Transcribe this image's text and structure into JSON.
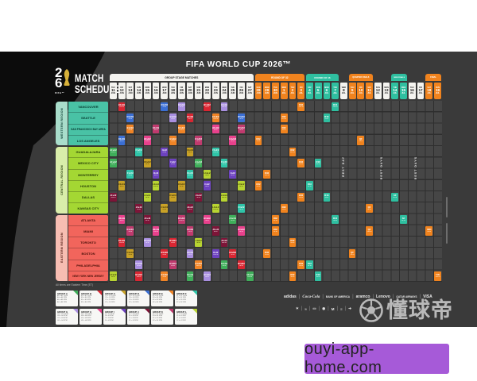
{
  "colors": {
    "poster_bg": "#3a3a3a",
    "swoosh": "#0c0c0c",
    "grid_cell": "#464646",
    "grid_line": "#2e2e2e",
    "stage_orange": "#f0831e",
    "stage_teal": "#2fbfa0",
    "banner_light": "#f4f3ef",
    "west_cell": "#49c2a5",
    "west_band": "#a9ddcb",
    "west_text": "#083a30",
    "central_cell": "#a4d733",
    "central_band": "#d9edaa",
    "central_text": "#1e3506",
    "east_cell": "#f2655c",
    "east_band": "#f7bdb2",
    "east_text": "#471008",
    "watermark_purple": "#a65ad8",
    "groups": {
      "A": "#3fae5a",
      "B": "#d92632",
      "C": "#c9a227",
      "D": "#3b6fd4",
      "E": "#f08426",
      "F": "#2fc4a8",
      "G": "#a98fe0",
      "H": "#e8418c",
      "I": "#6d42c0",
      "J": "#7d1538",
      "K": "#c03a6e",
      "L": "#b8d432"
    }
  },
  "poster": {
    "title": "FIFA WORLD CUP 2026™",
    "logo": {
      "digit_top": "2",
      "digit_bottom": "6",
      "fifa": "FIFA™",
      "line1": "MATCH",
      "line2": "SCHEDULE",
      "trophy_icon": "world-cup-trophy-icon"
    },
    "note": "All times are Eastern Time (ET)"
  },
  "header": {
    "banners": [
      {
        "label": "GROUP STAGE MATCHES",
        "from": 1,
        "to": 17,
        "type": "light",
        "font": 3.4
      },
      {
        "label": "ROUND OF 32",
        "from": 18,
        "to": 23,
        "type": "orange",
        "font": 3.2
      },
      {
        "label": "ROUND OF 16",
        "from": 24,
        "to": 27,
        "type": "teal",
        "font": 3.0
      },
      {
        "label": "QUARTER FINALS",
        "from": 29,
        "to": 31,
        "type": "orange",
        "font": 2.4
      },
      {
        "label": "SEMI FINALS",
        "from": 34,
        "to": 35,
        "type": "teal",
        "font": 2.2
      },
      {
        "label": "FINAL",
        "from": 38,
        "to": 39,
        "type": "orange",
        "font": 2.6
      }
    ],
    "stage_cols": {
      "group": [
        1,
        17
      ],
      "r32": [
        18,
        23
      ],
      "r16": [
        24,
        27
      ],
      "qf": [
        29,
        31
      ],
      "sf": [
        34,
        35
      ],
      "final": [
        38,
        39
      ],
      "rest": [
        28,
        32,
        33,
        36,
        37
      ]
    },
    "dates": [
      {
        "w": "THU",
        "d": "11",
        "m": "JUN"
      },
      {
        "w": "FRI",
        "d": "12",
        "m": "JUN"
      },
      {
        "w": "SAT",
        "d": "13",
        "m": "JUN"
      },
      {
        "w": "SUN",
        "d": "14",
        "m": "JUN"
      },
      {
        "w": "MON",
        "d": "15",
        "m": "JUN"
      },
      {
        "w": "TUE",
        "d": "16",
        "m": "JUN"
      },
      {
        "w": "WED",
        "d": "17",
        "m": "JUN"
      },
      {
        "w": "THU",
        "d": "18",
        "m": "JUN"
      },
      {
        "w": "FRI",
        "d": "19",
        "m": "JUN"
      },
      {
        "w": "SAT",
        "d": "20",
        "m": "JUN"
      },
      {
        "w": "SUN",
        "d": "21",
        "m": "JUN"
      },
      {
        "w": "MON",
        "d": "22",
        "m": "JUN"
      },
      {
        "w": "TUE",
        "d": "23",
        "m": "JUN"
      },
      {
        "w": "WED",
        "d": "24",
        "m": "JUN"
      },
      {
        "w": "THU",
        "d": "25",
        "m": "JUN"
      },
      {
        "w": "FRI",
        "d": "26",
        "m": "JUN"
      },
      {
        "w": "SAT",
        "d": "27",
        "m": "JUN"
      },
      {
        "w": "SUN",
        "d": "28",
        "m": "JUN"
      },
      {
        "w": "MON",
        "d": "29",
        "m": "JUN"
      },
      {
        "w": "TUE",
        "d": "30",
        "m": "JUN"
      },
      {
        "w": "WED",
        "d": "1",
        "m": "JUL"
      },
      {
        "w": "THU",
        "d": "2",
        "m": "JUL"
      },
      {
        "w": "FRI",
        "d": "3",
        "m": "JUL"
      },
      {
        "w": "SAT",
        "d": "4",
        "m": "JUL"
      },
      {
        "w": "SUN",
        "d": "5",
        "m": "JUL"
      },
      {
        "w": "MON",
        "d": "6",
        "m": "JUL"
      },
      {
        "w": "TUE",
        "d": "7",
        "m": "JUL"
      },
      {
        "w": "WED",
        "d": "8",
        "m": "JUL"
      },
      {
        "w": "THU",
        "d": "9",
        "m": "JUL"
      },
      {
        "w": "FRI",
        "d": "10",
        "m": "JUL"
      },
      {
        "w": "SAT",
        "d": "11",
        "m": "JUL"
      },
      {
        "w": "SUN",
        "d": "12",
        "m": "JUL"
      },
      {
        "w": "MON",
        "d": "13",
        "m": "JUL"
      },
      {
        "w": "TUE",
        "d": "14",
        "m": "JUL"
      },
      {
        "w": "WED",
        "d": "15",
        "m": "JUL"
      },
      {
        "w": "THU",
        "d": "16",
        "m": "JUL"
      },
      {
        "w": "FRI",
        "d": "17",
        "m": "JUL"
      },
      {
        "w": "SAT",
        "d": "18",
        "m": "JUL"
      },
      {
        "w": "SUN",
        "d": "19",
        "m": "JUL"
      }
    ]
  },
  "regions": [
    {
      "label": "WESTERN REGION",
      "rows": [
        1,
        4
      ],
      "cities": [
        "VANCOUVER",
        "SEATTLE",
        "SAN FRANCISCO BAY AREA",
        "LOS ANGELES"
      ]
    },
    {
      "label": "CENTRAL REGION",
      "rows": [
        5,
        10
      ],
      "cities": [
        "GUADALAJARA",
        "MEXICO CITY",
        "MONTERREY",
        "HOUSTON",
        "DALLAS",
        "KANSAS CITY"
      ]
    },
    {
      "label": "EASTERN REGION",
      "rows": [
        11,
        16
      ],
      "cities": [
        "ATLANTA",
        "MIAMI",
        "TORONTO",
        "BOSTON",
        "PHILADELPHIA",
        "NEW YORK NEW JERSEY"
      ]
    }
  ],
  "grid": {
    "rest_labels": [
      {
        "col": 28,
        "text": "REST DAY"
      },
      {
        "col": 32.5,
        "text": "REST DAYS"
      },
      {
        "col": 36.5,
        "text": "REST DAYS"
      }
    ],
    "times": [
      "12PM",
      "3PM",
      "6PM",
      "9PM"
    ],
    "cells": [
      {
        "r": 1,
        "c": 2,
        "g": "B"
      },
      {
        "r": 1,
        "c": 7,
        "g": "D"
      },
      {
        "r": 1,
        "c": 9,
        "g": "G"
      },
      {
        "r": 1,
        "c": 12,
        "g": "B"
      },
      {
        "r": 1,
        "c": 14,
        "g": "G"
      },
      {
        "r": 2,
        "c": 3,
        "g": "D"
      },
      {
        "r": 2,
        "c": 8,
        "g": "G"
      },
      {
        "r": 2,
        "c": 10,
        "g": "B"
      },
      {
        "r": 2,
        "c": 13,
        "g": "E"
      },
      {
        "r": 2,
        "c": 16,
        "g": "D"
      },
      {
        "r": 3,
        "c": 3,
        "g": "E"
      },
      {
        "r": 3,
        "c": 6,
        "g": "K"
      },
      {
        "r": 3,
        "c": 9,
        "g": "E"
      },
      {
        "r": 3,
        "c": 13,
        "g": "H"
      },
      {
        "r": 3,
        "c": 16,
        "g": "K"
      },
      {
        "r": 4,
        "c": 2,
        "g": "D"
      },
      {
        "r": 4,
        "c": 5,
        "g": "H"
      },
      {
        "r": 4,
        "c": 8,
        "g": "E"
      },
      {
        "r": 4,
        "c": 11,
        "g": "K"
      },
      {
        "r": 4,
        "c": 15,
        "g": "H"
      },
      {
        "r": 5,
        "c": 1,
        "g": "A"
      },
      {
        "r": 5,
        "c": 4,
        "g": "F"
      },
      {
        "r": 5,
        "c": 7,
        "g": "I"
      },
      {
        "r": 5,
        "c": 10,
        "g": "C"
      },
      {
        "r": 5,
        "c": 13,
        "g": "F"
      },
      {
        "r": 6,
        "c": 1,
        "g": "A"
      },
      {
        "r": 6,
        "c": 5,
        "g": "C"
      },
      {
        "r": 6,
        "c": 8,
        "g": "I"
      },
      {
        "r": 6,
        "c": 11,
        "g": "A"
      },
      {
        "r": 6,
        "c": 14,
        "g": "F"
      },
      {
        "r": 7,
        "c": 3,
        "g": "F"
      },
      {
        "r": 7,
        "c": 6,
        "g": "I"
      },
      {
        "r": 7,
        "c": 10,
        "g": "F"
      },
      {
        "r": 7,
        "c": 12,
        "g": "L"
      },
      {
        "r": 7,
        "c": 15,
        "g": "I"
      },
      {
        "r": 8,
        "c": 2,
        "g": "C"
      },
      {
        "r": 8,
        "c": 6,
        "g": "L"
      },
      {
        "r": 8,
        "c": 9,
        "g": "C"
      },
      {
        "r": 8,
        "c": 12,
        "g": "I"
      },
      {
        "r": 8,
        "c": 16,
        "g": "L"
      },
      {
        "r": 9,
        "c": 1,
        "g": "J"
      },
      {
        "r": 9,
        "c": 5,
        "g": "L"
      },
      {
        "r": 9,
        "c": 8,
        "g": "C"
      },
      {
        "r": 9,
        "c": 11,
        "g": "J"
      },
      {
        "r": 9,
        "c": 14,
        "g": "L"
      },
      {
        "r": 10,
        "c": 4,
        "g": "J"
      },
      {
        "r": 10,
        "c": 7,
        "g": "C"
      },
      {
        "r": 10,
        "c": 10,
        "g": "J"
      },
      {
        "r": 10,
        "c": 13,
        "g": "L"
      },
      {
        "r": 10,
        "c": 16,
        "g": "F"
      },
      {
        "r": 11,
        "c": 2,
        "g": "H"
      },
      {
        "r": 11,
        "c": 5,
        "g": "J"
      },
      {
        "r": 11,
        "c": 9,
        "g": "K"
      },
      {
        "r": 11,
        "c": 12,
        "g": "H"
      },
      {
        "r": 11,
        "c": 15,
        "g": "A"
      },
      {
        "r": 12,
        "c": 3,
        "g": "K"
      },
      {
        "r": 12,
        "c": 6,
        "g": "H"
      },
      {
        "r": 12,
        "c": 10,
        "g": "K"
      },
      {
        "r": 12,
        "c": 13,
        "g": "J"
      },
      {
        "r": 12,
        "c": 16,
        "g": "H"
      },
      {
        "r": 13,
        "c": 2,
        "g": "B"
      },
      {
        "r": 13,
        "c": 5,
        "g": "G"
      },
      {
        "r": 13,
        "c": 8,
        "g": "B"
      },
      {
        "r": 13,
        "c": 11,
        "g": "L"
      },
      {
        "r": 13,
        "c": 14,
        "g": "J"
      },
      {
        "r": 14,
        "c": 3,
        "g": "C"
      },
      {
        "r": 14,
        "c": 7,
        "g": "B"
      },
      {
        "r": 14,
        "c": 10,
        "g": "G"
      },
      {
        "r": 14,
        "c": 13,
        "g": "I"
      },
      {
        "r": 14,
        "c": 15,
        "g": "B"
      },
      {
        "r": 15,
        "c": 4,
        "g": "G"
      },
      {
        "r": 15,
        "c": 8,
        "g": "K"
      },
      {
        "r": 15,
        "c": 11,
        "g": "E"
      },
      {
        "r": 15,
        "c": 14,
        "g": "A"
      },
      {
        "r": 15,
        "c": 16,
        "g": "B"
      },
      {
        "r": 16,
        "c": 1,
        "g": "L"
      },
      {
        "r": 16,
        "c": 4,
        "g": "B"
      },
      {
        "r": 16,
        "c": 7,
        "g": "E"
      },
      {
        "r": 16,
        "c": 10,
        "g": "A"
      },
      {
        "r": 16,
        "c": 12,
        "g": "G"
      },
      {
        "r": 16,
        "c": 17,
        "g": "A"
      },
      {
        "r": 4,
        "c": 18,
        "g": "R32"
      },
      {
        "r": 8,
        "c": 18,
        "g": "R32"
      },
      {
        "r": 14,
        "c": 19,
        "g": "R32"
      },
      {
        "r": 7,
        "c": 19,
        "g": "R32"
      },
      {
        "r": 12,
        "c": 20,
        "g": "R32"
      },
      {
        "r": 11,
        "c": 20,
        "g": "R32"
      },
      {
        "r": 3,
        "c": 21,
        "g": "R32"
      },
      {
        "r": 2,
        "c": 21,
        "g": "R32"
      },
      {
        "r": 10,
        "c": 21,
        "g": "R32"
      },
      {
        "r": 13,
        "c": 22,
        "g": "R32"
      },
      {
        "r": 16,
        "c": 22,
        "g": "R32"
      },
      {
        "r": 5,
        "c": 22,
        "g": "R32"
      },
      {
        "r": 15,
        "c": 23,
        "g": "R32"
      },
      {
        "r": 9,
        "c": 23,
        "g": "R32"
      },
      {
        "r": 6,
        "c": 23,
        "g": "R32"
      },
      {
        "r": 1,
        "c": 23,
        "g": "R32"
      },
      {
        "r": 15,
        "c": 24,
        "g": "R16"
      },
      {
        "r": 8,
        "c": 24,
        "g": "R16"
      },
      {
        "r": 16,
        "c": 25,
        "g": "R16"
      },
      {
        "r": 6,
        "c": 25,
        "g": "R16"
      },
      {
        "r": 9,
        "c": 26,
        "g": "R16"
      },
      {
        "r": 2,
        "c": 26,
        "g": "R16"
      },
      {
        "r": 11,
        "c": 27,
        "g": "R16"
      },
      {
        "r": 1,
        "c": 27,
        "g": "R16"
      },
      {
        "r": 14,
        "c": 29,
        "g": "QF"
      },
      {
        "r": 4,
        "c": 30,
        "g": "QF"
      },
      {
        "r": 10,
        "c": 31,
        "g": "QF"
      },
      {
        "r": 12,
        "c": 31,
        "g": "QF"
      },
      {
        "r": 9,
        "c": 34,
        "g": "SF"
      },
      {
        "r": 11,
        "c": 35,
        "g": "SF"
      },
      {
        "r": 12,
        "c": 38,
        "g": "3RD"
      },
      {
        "r": 16,
        "c": 39,
        "g": "FIN"
      }
    ]
  },
  "legend": {
    "groups": [
      {
        "name": "GROUP A",
        "letter": "A"
      },
      {
        "name": "GROUP B",
        "letter": "B"
      },
      {
        "name": "GROUP C",
        "letter": "C"
      },
      {
        "name": "GROUP D",
        "letter": "D"
      },
      {
        "name": "GROUP E",
        "letter": "E"
      },
      {
        "name": "GROUP F",
        "letter": "F"
      },
      {
        "name": "GROUP G",
        "letter": "G"
      },
      {
        "name": "GROUP H",
        "letter": "H"
      },
      {
        "name": "GROUP I",
        "letter": "I"
      },
      {
        "name": "GROUP J",
        "letter": "J"
      },
      {
        "name": "GROUP K",
        "letter": "K"
      },
      {
        "name": "GROUP L",
        "letter": "L"
      }
    ],
    "fixture_pattern": [
      "{G}1 v {G}2  12PM",
      "{G}3 v {G}4  3PM",
      "{G}1 v {G}3  6PM",
      "{G}2 v {G}4  9PM"
    ]
  },
  "sponsors": {
    "row1": [
      "adidas",
      "Coca-Cola",
      "BANK OF AMERICA",
      "aramco",
      "Lenovo",
      "QATAR AIRWAYS",
      "VISA"
    ],
    "row2_glyphs": [
      "✶",
      "≈",
      "▭",
      "◉",
      "M",
      "≡",
      "➔"
    ]
  },
  "watermarks": {
    "dongqiudi": {
      "text": "懂球帝",
      "icon": "soccer-ball-icon"
    },
    "site": "ouyi-app-home.com"
  }
}
